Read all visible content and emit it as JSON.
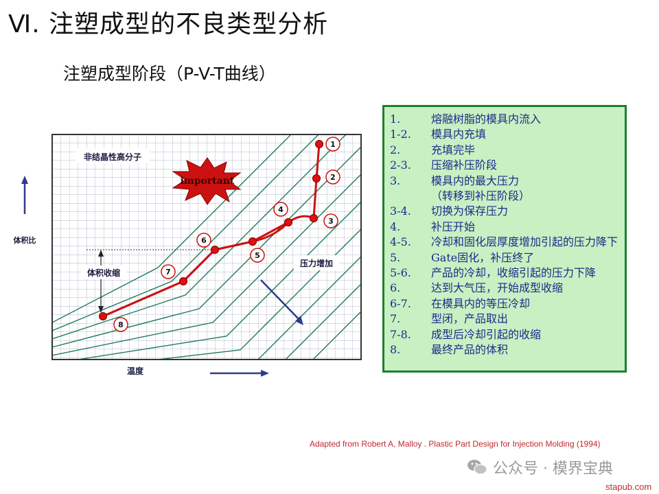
{
  "title": "Ⅵ. 注塑成型的不良类型分析",
  "subtitle": "注塑成型阶段（P-V-T曲线）",
  "diagram": {
    "material_label": "非结晶性高分子",
    "important_label": "important",
    "y_axis_label": "体积比",
    "x_axis_label": "温度",
    "shrink_label": "体积收缩",
    "pressure_label": "压力增加",
    "point_labels": [
      "1",
      "2",
      "3",
      "4",
      "5",
      "6",
      "7",
      "8"
    ]
  },
  "legend": [
    {
      "num": "1.",
      "text": "熔融树脂的模具内流入"
    },
    {
      "num": "1-2.",
      "text": "模具内充填"
    },
    {
      "num": "2.",
      "text": "充填完毕"
    },
    {
      "num": "2-3.",
      "text": "压缩补压阶段"
    },
    {
      "num": "3.",
      "text": "模具内的最大压力"
    },
    {
      "num": "",
      "text": "（转移到补压阶段）"
    },
    {
      "num": "3-4.",
      "text": "切换为保存压力"
    },
    {
      "num": "4.",
      "text": "补压开始"
    },
    {
      "num": "4-5.",
      "text": "冷却和固化层厚度增加引起的压力降下"
    },
    {
      "num": "5.",
      "text": "Gate固化，补压终了"
    },
    {
      "num": "5-6.",
      "text": "产品的冷却，收缩引起的压力下降"
    },
    {
      "num": "6.",
      "text": "达到大气压，开始成型收缩"
    },
    {
      "num": "6-7.",
      "text": "在模具内的等压冷却"
    },
    {
      "num": "7.",
      "text": "型闭，产品取出"
    },
    {
      "num": "7-8.",
      "text": "成型后冷却引起的收缩"
    },
    {
      "num": "8.",
      "text": "最终产品的体积"
    }
  ],
  "credit": "Adapted from Robert  A, Malloy . Plastic Part Design for Injection Molding (1994)",
  "watermark": "公众号 · 模界宝典",
  "site": "stapub.com",
  "colors": {
    "grid": "#9aa3bd",
    "isobar": "#1f7a55",
    "curve": "#cc1111",
    "legend_bg": "#c8f0c3",
    "legend_text": "#1a2b8a",
    "arrow": "#2e3a8c"
  }
}
